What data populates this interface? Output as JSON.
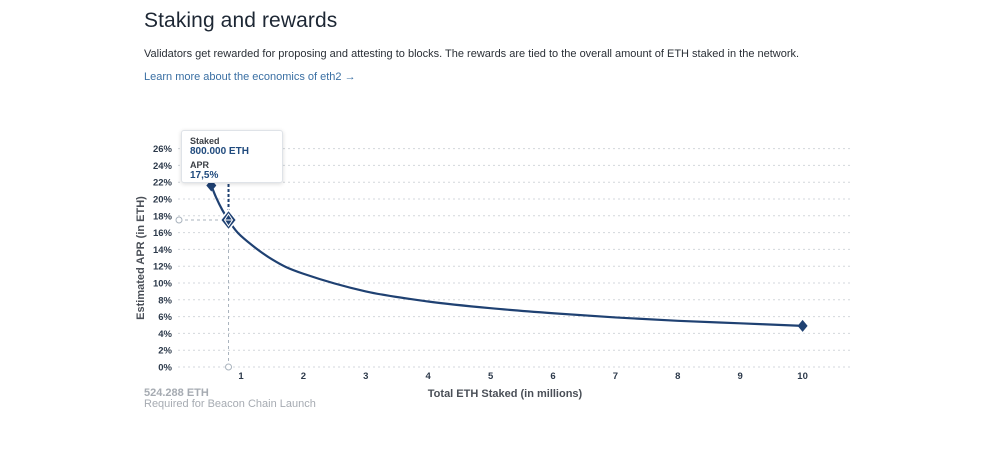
{
  "header": {
    "title": "Staking and rewards",
    "description": "Validators get rewarded for proposing and attesting to blocks. The rewards are tied to the overall amount of ETH staked in the network.",
    "link": "Learn more about the economics of eth2 →"
  },
  "tooltip": {
    "staked_label": "Staked",
    "staked_value": "800.000 ETH",
    "apr_label": "APR",
    "apr_value": "17,5%"
  },
  "footnote": {
    "value": "524.288 ETH",
    "text": "Required for Beacon Chain Launch"
  },
  "colors": {
    "curve": "#1f4172",
    "grid": "#d3d7dc",
    "guide": "#a9b3bd",
    "muted": "#a6abb2"
  },
  "chart_data": {
    "type": "line",
    "xlabel": "Total ETH Staked  (in millions)",
    "ylabel": "Estimated APR (in ETH)",
    "x_ticks": [
      1,
      2,
      3,
      4,
      5,
      6,
      7,
      8,
      9,
      10
    ],
    "y_ticks": [
      "0%",
      "2%",
      "4%",
      "6%",
      "8%",
      "10%",
      "12%",
      "14%",
      "16%",
      "18%",
      "20%",
      "22%",
      "24%",
      "26%"
    ],
    "xlim": [
      0.524288,
      10
    ],
    "ylim": [
      0,
      26
    ],
    "grid": true,
    "series": [
      {
        "x": [
          0.524288,
          0.6,
          0.7,
          0.8,
          1,
          1.5,
          2,
          3,
          4,
          5,
          6,
          7,
          8,
          9,
          10
        ],
        "y": [
          21.6,
          20.2,
          18.7,
          17.5,
          15.6,
          12.8,
          11.1,
          9.0,
          7.8,
          7.0,
          6.4,
          5.9,
          5.5,
          5.2,
          4.9
        ]
      }
    ],
    "markers": [
      {
        "x": 0.524288,
        "y": 21.6
      },
      {
        "x": 10,
        "y": 4.9
      }
    ],
    "highlight": {
      "x": 0.8,
      "y": 17.5
    }
  }
}
